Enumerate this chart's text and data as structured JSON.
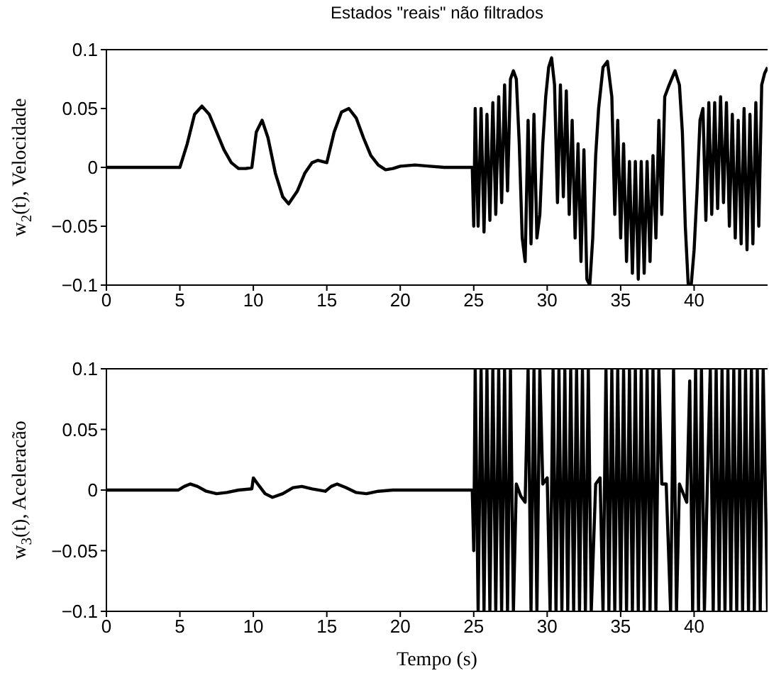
{
  "chart_data": [
    {
      "type": "line",
      "title": "Estados \"reais\" não filtrados",
      "ylabel": "w$_{2}$(t), Velocidade",
      "xlim": [
        0,
        45
      ],
      "ylim": [
        -0.1,
        0.1
      ],
      "xticks": [
        0,
        5,
        10,
        15,
        20,
        25,
        30,
        35,
        40
      ],
      "yticks": [
        -0.1,
        -0.05,
        0,
        0.05,
        0.1
      ],
      "series": [
        {
          "color": "#000000",
          "x": [
            0,
            5,
            5.5,
            6,
            6.5,
            7,
            7.5,
            8,
            8.5,
            9,
            9.5,
            9.9,
            10.2,
            10.6,
            11,
            11.5,
            12,
            12.4,
            13,
            13.5,
            14,
            14.4,
            15,
            15.5,
            16,
            16.5,
            17,
            17.5,
            18,
            18.5,
            19,
            19.5,
            20,
            21,
            22,
            23,
            24.9,
            25.0,
            25.1,
            25.3,
            25.5,
            25.7,
            25.9,
            26.1,
            26.3,
            26.5,
            26.7,
            26.9,
            27.1,
            27.3,
            27.5,
            27.7,
            27.9,
            28.1,
            28.3,
            28.5,
            28.7,
            28.9,
            29.1,
            29.3,
            29.5,
            29.7,
            29.9,
            30.1,
            30.3,
            30.5,
            30.7,
            30.9,
            31.1,
            31.3,
            31.5,
            31.7,
            31.9,
            32.1,
            32.3,
            32.5,
            32.7,
            32.9,
            33.1,
            33.3,
            33.5,
            33.8,
            34.1,
            34.4,
            34.6,
            34.8,
            35.0,
            35.2,
            35.4,
            35.6,
            35.8,
            36.0,
            36.2,
            36.4,
            36.6,
            36.8,
            37.0,
            37.2,
            37.4,
            37.6,
            37.8,
            38.0,
            38.3,
            38.7,
            39.0,
            39.2,
            39.4,
            39.6,
            39.8,
            40.0,
            40.2,
            40.4,
            40.6,
            40.8,
            41.0,
            41.2,
            41.4,
            41.6,
            41.8,
            42.0,
            42.2,
            42.4,
            42.6,
            42.8,
            43.0,
            43.2,
            43.4,
            43.6,
            43.8,
            44.0,
            44.2,
            44.4,
            44.6,
            44.8,
            45
          ],
          "values": [
            0,
            0,
            0.02,
            0.045,
            0.052,
            0.045,
            0.03,
            0.015,
            0.004,
            -0.001,
            -0.001,
            0,
            0.03,
            0.04,
            0.025,
            -0.005,
            -0.025,
            -0.031,
            -0.02,
            -0.005,
            0.004,
            0.006,
            0.004,
            0.03,
            0.047,
            0.05,
            0.042,
            0.025,
            0.01,
            0.002,
            -0.002,
            -0.001,
            0.001,
            0.002,
            0.001,
            0,
            0,
            -0.05,
            0.05,
            -0.05,
            0.05,
            -0.055,
            0.045,
            -0.045,
            0.055,
            -0.04,
            0.06,
            -0.03,
            0.07,
            -0.02,
            0.075,
            0.082,
            0.075,
            0.02,
            -0.06,
            -0.08,
            0.04,
            -0.065,
            0.045,
            -0.06,
            -0.04,
            0.02,
            0.06,
            0.085,
            0.093,
            0.07,
            -0.03,
            0.07,
            -0.025,
            0.065,
            -0.04,
            0.04,
            -0.06,
            0.02,
            -0.08,
            0.015,
            -0.095,
            -0.1,
            -0.06,
            0.01,
            0.05,
            0.085,
            0.09,
            0.06,
            -0.04,
            0.04,
            -0.06,
            0.02,
            -0.08,
            0.005,
            -0.09,
            0.005,
            -0.095,
            0.005,
            -0.09,
            0.005,
            -0.08,
            0.01,
            -0.06,
            0.04,
            -0.04,
            0.06,
            0.07,
            0.082,
            0.07,
            0.03,
            -0.05,
            -0.1,
            -0.1,
            -0.07,
            -0.02,
            0.04,
            0.05,
            -0.045,
            0.055,
            -0.04,
            0.055,
            -0.035,
            0.06,
            -0.03,
            0.055,
            -0.05,
            0.045,
            -0.06,
            0.04,
            -0.065,
            0.05,
            -0.07,
            0.045,
            -0.065,
            0.055,
            -0.05,
            0.07,
            0.08,
            0.085
          ]
        }
      ]
    },
    {
      "type": "line",
      "xlabel": "Tempo (s)",
      "ylabel": "w$_{3}$(t), Aceleracão",
      "xlim": [
        0,
        45
      ],
      "ylim": [
        -0.1,
        0.1
      ],
      "xticks": [
        0,
        5,
        10,
        15,
        20,
        25,
        30,
        35,
        40
      ],
      "yticks": [
        -0.1,
        -0.05,
        0,
        0.05,
        0.1
      ],
      "series": [
        {
          "color": "#000000",
          "x": [
            0,
            4.9,
            5.3,
            5.7,
            6.2,
            6.8,
            7.5,
            8.2,
            9,
            9.9,
            10,
            10.3,
            10.8,
            11.3,
            12,
            12.7,
            13.3,
            14,
            14.9,
            15.3,
            15.7,
            16.3,
            17,
            17.7,
            18.5,
            19.5,
            24.9,
            25.0,
            25.1,
            25.3,
            25.5,
            25.7,
            25.9,
            26.1,
            26.3,
            26.5,
            26.7,
            26.9,
            27.1,
            27.3,
            27.5,
            27.7,
            27.9,
            28.2,
            28.5,
            28.7,
            28.9,
            29.1,
            29.3,
            29.5,
            29.7,
            30.0,
            30.2,
            30.4,
            30.6,
            30.8,
            31.0,
            31.2,
            31.4,
            31.6,
            31.8,
            32.0,
            32.2,
            32.4,
            32.6,
            32.8,
            33.0,
            33.3,
            33.6,
            33.8,
            34.0,
            34.2,
            34.4,
            34.6,
            34.8,
            35.0,
            35.2,
            35.4,
            35.6,
            35.8,
            36.0,
            36.2,
            36.4,
            36.6,
            36.8,
            37.0,
            37.2,
            37.4,
            37.6,
            37.8,
            38.1,
            38.4,
            38.6,
            38.8,
            39.0,
            39.5,
            39.7,
            39.9,
            40.1,
            40.3,
            40.5,
            40.7,
            40.9,
            41.1,
            41.3,
            41.5,
            41.7,
            41.9,
            42.1,
            42.3,
            42.5,
            42.7,
            42.9,
            43.1,
            43.3,
            43.5,
            43.7,
            43.9,
            44.1,
            44.3,
            44.5,
            44.7,
            45
          ],
          "values": [
            0,
            0,
            0.003,
            0.005,
            0.003,
            -0.001,
            -0.003,
            -0.002,
            0,
            0.001,
            0.01,
            0.005,
            -0.003,
            -0.006,
            -0.003,
            0.002,
            0.003,
            0.001,
            -0.001,
            0.003,
            0.005,
            0.002,
            -0.002,
            -0.003,
            -0.001,
            0,
            0,
            -0.05,
            0.1,
            -0.1,
            0.1,
            -0.1,
            0.1,
            -0.1,
            0.1,
            -0.1,
            0.1,
            -0.1,
            0.1,
            -0.1,
            0.1,
            -0.1,
            0.005,
            -0.005,
            -0.01,
            0.1,
            -0.1,
            0.1,
            -0.1,
            0.1,
            0.005,
            0.01,
            -0.1,
            0.1,
            -0.1,
            0.1,
            -0.1,
            0.1,
            -0.1,
            0.1,
            -0.1,
            0.1,
            -0.1,
            0.1,
            -0.1,
            0.1,
            -0.1,
            0.005,
            0.01,
            -0.1,
            0.1,
            -0.1,
            0.1,
            -0.1,
            0.1,
            -0.1,
            0.1,
            -0.1,
            0.1,
            -0.1,
            0.1,
            -0.1,
            0.1,
            -0.1,
            0.1,
            -0.1,
            0.1,
            -0.1,
            0.1,
            0.005,
            0.005,
            -0.1,
            0.1,
            -0.1,
            0.005,
            -0.01,
            0.09,
            -0.1,
            0.1,
            -0.1,
            0.1,
            -0.1,
            0.005,
            0.1,
            -0.1,
            0.1,
            -0.1,
            0.1,
            -0.1,
            0.1,
            -0.1,
            0.1,
            -0.1,
            0.1,
            -0.1,
            0.1,
            -0.1,
            0.1,
            -0.1,
            0.1,
            -0.1,
            0.1,
            -0.1
          ]
        }
      ]
    }
  ]
}
